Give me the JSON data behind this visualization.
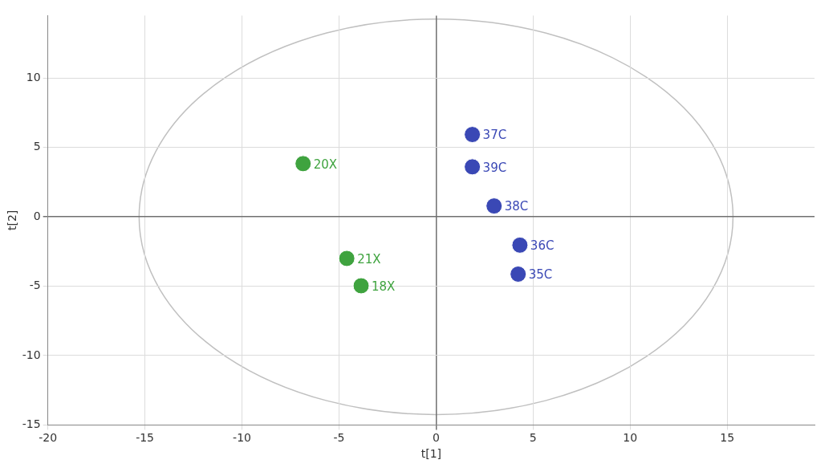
{
  "chart_data": {
    "type": "scatter",
    "xlabel": "t[1]",
    "ylabel": "t[2]",
    "xlim": [
      -20,
      19.5
    ],
    "ylim": [
      -15,
      14.5
    ],
    "xticks": [
      -20,
      -15,
      -10,
      -5,
      0,
      5,
      10,
      15
    ],
    "yticks": [
      -15,
      -10,
      -5,
      0,
      5,
      10
    ],
    "grid": true,
    "legend": false,
    "marker": "circle",
    "series": [
      {
        "name": "20X",
        "color": "#3fa33f",
        "x": [
          -6.85
        ],
        "values": [
          3.83
        ]
      },
      {
        "name": "21X",
        "color": "#3fa33f",
        "x": [
          -4.6
        ],
        "values": [
          -3.0
        ]
      },
      {
        "name": "18X",
        "color": "#3fa33f",
        "x": [
          -3.86
        ],
        "values": [
          -4.97
        ]
      },
      {
        "name": "37C",
        "color": "#3a48b5",
        "x": [
          1.87
        ],
        "values": [
          5.93
        ]
      },
      {
        "name": "39C",
        "color": "#3a48b5",
        "x": [
          1.87
        ],
        "values": [
          3.6
        ]
      },
      {
        "name": "38C",
        "color": "#3a48b5",
        "x": [
          2.99
        ],
        "values": [
          0.78
        ]
      },
      {
        "name": "36C",
        "color": "#3a48b5",
        "x": [
          4.32
        ],
        "values": [
          -2.04
        ]
      },
      {
        "name": "35C",
        "color": "#3a48b5",
        "x": [
          4.23
        ],
        "values": [
          -4.13
        ]
      }
    ]
  }
}
